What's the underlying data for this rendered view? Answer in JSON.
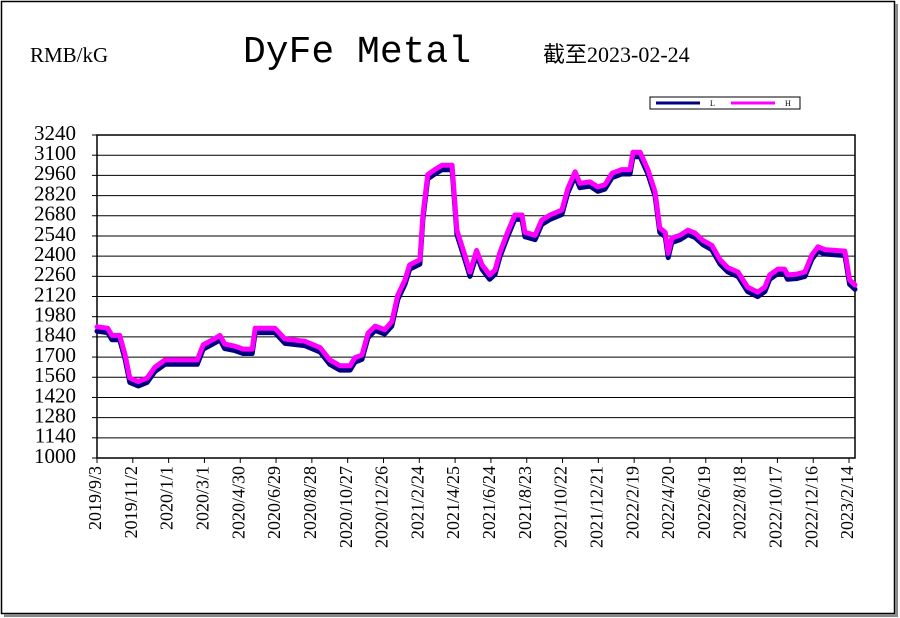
{
  "chart_data": {
    "type": "line",
    "title": "DyFe Metal",
    "unit_label": "RMB/kG",
    "subtitle": "截至2023-02-24",
    "x": [
      "2019/9/3",
      "2019/9/21",
      "2019/9/28",
      "2019/10/11",
      "2019/10/20",
      "2019/10/28",
      "2019/11/11",
      "2019/11/26",
      "2019/12/9",
      "2019/12/26",
      "2020/2/18",
      "2020/2/28",
      "2020/3/19",
      "2020/3/27",
      "2020/4/4",
      "2020/4/21",
      "2020/5/5",
      "2020/5/20",
      "2020/5/25",
      "2020/6/27",
      "2020/7/14",
      "2020/8/16",
      "2020/9/11",
      "2020/9/27",
      "2020/10/14",
      "2020/10/31",
      "2020/11/8",
      "2020/11/20",
      "2020/11/30",
      "2020/12/12",
      "2020/12/28",
      "2021/1/9",
      "2021/1/19",
      "2021/1/31",
      "2021/2/8",
      "2021/2/25",
      "2021/3/2",
      "2021/3/10",
      "2021/3/22",
      "2021/4/3",
      "2021/4/20",
      "2021/4/28",
      "2021/5/11",
      "2021/5/20",
      "2021/5/31",
      "2021/6/9",
      "2021/6/22",
      "2021/7/1",
      "2021/7/9",
      "2021/7/22",
      "2021/8/3",
      "2021/8/15",
      "2021/8/20",
      "2021/9/6",
      "2021/9/17",
      "2021/10/1",
      "2021/10/21",
      "2021/10/31",
      "2021/11/12",
      "2021/11/20",
      "2021/12/7",
      "2021/12/20",
      "2022/1/1",
      "2022/1/13",
      "2022/1/29",
      "2022/2/12",
      "2022/2/17",
      "2022/3/1",
      "2022/3/14",
      "2022/3/26",
      "2022/4/3",
      "2022/4/12",
      "2022/4/17",
      "2022/4/23",
      "2022/5/7",
      "2022/5/20",
      "2022/6/1",
      "2022/6/14",
      "2022/6/29",
      "2022/7/13",
      "2022/7/26",
      "2022/8/12",
      "2022/8/28",
      "2022/9/14",
      "2022/9/26",
      "2022/10/4",
      "2022/10/18",
      "2022/10/29",
      "2022/11/3",
      "2022/11/19",
      "2022/12/2",
      "2022/12/14",
      "2022/12/24",
      "2023/1/4",
      "2023/2/7",
      "2023/2/15",
      "2023/2/24"
    ],
    "series": [
      {
        "name": "L",
        "color": "#000080",
        "values": [
          1890,
          1880,
          1830,
          1830,
          1695,
          1535,
          1510,
          1535,
          1610,
          1660,
          1660,
          1765,
          1810,
          1830,
          1770,
          1755,
          1735,
          1735,
          1880,
          1880,
          1805,
          1790,
          1745,
          1660,
          1620,
          1620,
          1675,
          1695,
          1845,
          1895,
          1870,
          1925,
          2110,
          2215,
          2320,
          2355,
          2665,
          2945,
          2980,
          3010,
          3010,
          2560,
          2390,
          2270,
          2420,
          2320,
          2250,
          2285,
          2405,
          2545,
          2665,
          2665,
          2545,
          2525,
          2630,
          2665,
          2700,
          2850,
          2965,
          2885,
          2895,
          2860,
          2875,
          2955,
          2980,
          2980,
          3100,
          3100,
          2980,
          2825,
          2575,
          2545,
          2400,
          2505,
          2525,
          2560,
          2540,
          2490,
          2455,
          2355,
          2300,
          2270,
          2165,
          2130,
          2165,
          2250,
          2290,
          2290,
          2250,
          2255,
          2270,
          2390,
          2445,
          2425,
          2415,
          2215,
          2180
        ]
      },
      {
        "name": "H",
        "color": "#ff00ff",
        "values": [
          1910,
          1900,
          1850,
          1850,
          1715,
          1555,
          1530,
          1555,
          1630,
          1680,
          1680,
          1785,
          1830,
          1850,
          1790,
          1775,
          1755,
          1755,
          1900,
          1900,
          1825,
          1810,
          1765,
          1680,
          1640,
          1640,
          1695,
          1715,
          1865,
          1915,
          1890,
          1945,
          2130,
          2235,
          2340,
          2375,
          2685,
          2965,
          3000,
          3030,
          3030,
          2580,
          2410,
          2290,
          2440,
          2340,
          2270,
          2305,
          2425,
          2565,
          2685,
          2685,
          2565,
          2545,
          2650,
          2685,
          2720,
          2870,
          2985,
          2905,
          2915,
          2880,
          2895,
          2975,
          3000,
          3000,
          3120,
          3120,
          3000,
          2845,
          2595,
          2565,
          2420,
          2525,
          2545,
          2580,
          2560,
          2510,
          2475,
          2375,
          2320,
          2290,
          2185,
          2150,
          2185,
          2270,
          2310,
          2310,
          2270,
          2275,
          2290,
          2410,
          2465,
          2445,
          2435,
          2235,
          2200
        ]
      }
    ],
    "xlim": [
      "2019/9/3",
      "2023/2/24"
    ],
    "xticks": [
      "2019/9/3",
      "2019/11/2",
      "2020/1/1",
      "2020/3/1",
      "2020/4/30",
      "2020/6/29",
      "2020/8/28",
      "2020/10/27",
      "2020/12/26",
      "2021/2/24",
      "2021/4/25",
      "2021/6/24",
      "2021/8/23",
      "2021/10/22",
      "2021/12/21",
      "2022/2/19",
      "2022/4/20",
      "2022/6/19",
      "2022/8/18",
      "2022/10/17",
      "2022/12/16",
      "2023/2/14"
    ],
    "ylim": [
      1000,
      3240
    ],
    "yticks": [
      1000,
      1140,
      1280,
      1420,
      1560,
      1700,
      1840,
      1980,
      2120,
      2260,
      2400,
      2540,
      2680,
      2820,
      2960,
      3100,
      3240
    ],
    "grid": true,
    "legend": "top-right"
  }
}
